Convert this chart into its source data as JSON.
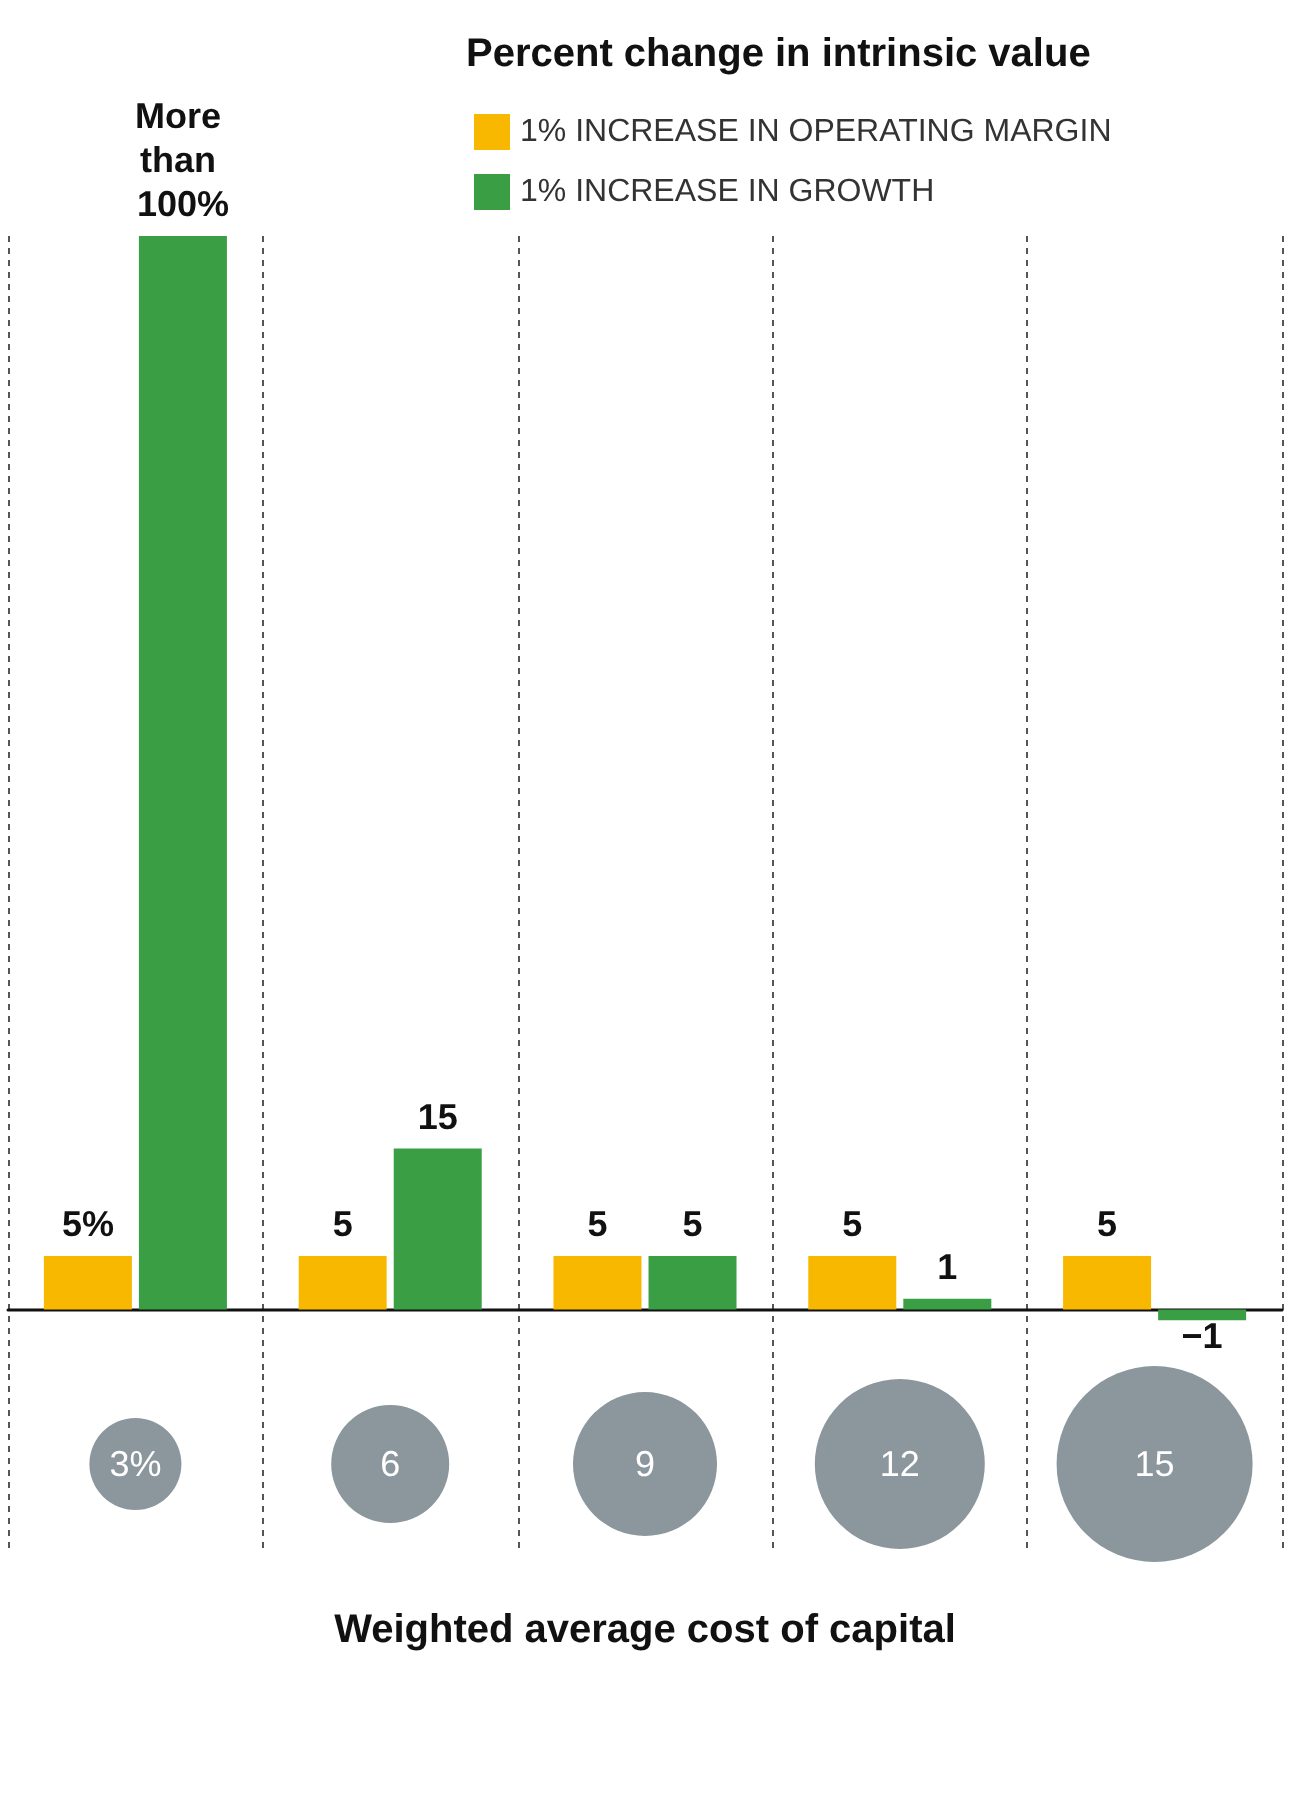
{
  "chart_data": {
    "type": "bar",
    "title": "Percent change in intrinsic value",
    "xlabel": "Weighted average cost of capital",
    "categories": [
      "3%",
      "6",
      "9",
      "12",
      "15"
    ],
    "series": [
      {
        "name": "1% INCREASE IN OPERATING MARGIN",
        "color": "#f9b800",
        "values": [
          5,
          5,
          5,
          5,
          5
        ],
        "value_labels": [
          "5%",
          "5",
          "5",
          "5",
          "5"
        ]
      },
      {
        "name": "1% INCREASE IN GROWTH",
        "color": "#3a9e45",
        "values": [
          100,
          15,
          5,
          1,
          -1
        ],
        "value_labels": [
          "More than 100%",
          "15",
          "5",
          "1",
          "−1"
        ]
      }
    ],
    "grid": "x",
    "legend": "top right"
  }
}
